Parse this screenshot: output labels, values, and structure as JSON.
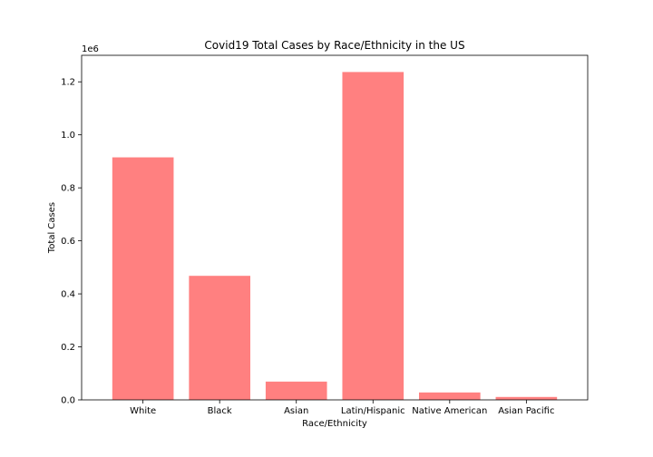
{
  "chart_data": {
    "type": "bar",
    "title": "Covid19 Total Cases by Race/Ethnicity in the US",
    "xlabel": "Race/Ethnicity",
    "ylabel": "Total Cases",
    "y_offset_label": "1e6",
    "categories": [
      "White",
      "Black",
      "Asian",
      "Latin/Hispanic",
      "Native American",
      "Asian Pacific"
    ],
    "values": [
      915000,
      468000,
      69000,
      1237000,
      28000,
      11000
    ],
    "ylim": [
      0,
      1300000
    ],
    "yticks": [
      0,
      200000,
      400000,
      600000,
      800000,
      1000000,
      1200000
    ],
    "ytick_labels": [
      "0.0",
      "0.2",
      "0.4",
      "0.6",
      "0.8",
      "1.0",
      "1.2"
    ],
    "bar_color": "#ff8080",
    "grid": false,
    "legend": false
  }
}
